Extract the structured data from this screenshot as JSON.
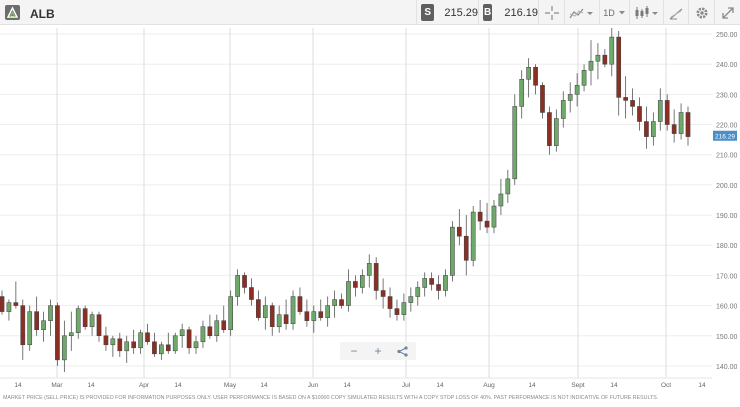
{
  "header": {
    "symbol": "ALB",
    "sell_tag": "S",
    "sell_price": "215.29",
    "buy_tag": "B",
    "buy_price": "216.19",
    "crosshair_icon": "crosshair-icon",
    "indicators_icon": "indicators-icon",
    "timeframe": "1D",
    "chart_type_icon": "candlestick-icon",
    "drawing_icon": "drawing-tools-icon",
    "settings_icon": "gear-icon",
    "expand_icon": "expand-icon"
  },
  "chart_data": {
    "type": "candlestick",
    "current_price_label": "216.29",
    "y_ticks": [
      "250.00",
      "240.00",
      "230.00",
      "220.00",
      "210.00",
      "200.00",
      "190.00",
      "180.00",
      "170.00",
      "160.00",
      "150.00",
      "140.00"
    ],
    "ylim": [
      136,
      252
    ],
    "x_ticks": [
      "14",
      "Mar",
      "14",
      "Apr",
      "14",
      "May",
      "14",
      "Jun",
      "14",
      "Jul",
      "14",
      "Aug",
      "14",
      "Sept",
      "14",
      "Oct",
      "14"
    ],
    "colors": {
      "up": "#6fa86b",
      "down": "#8b2e24",
      "grid": "#eeeeee",
      "price_label_bg": "#4a90c8"
    },
    "candles": [
      [
        163,
        165,
        157,
        158
      ],
      [
        158,
        162,
        155,
        161
      ],
      [
        161,
        168,
        159,
        160
      ],
      [
        160,
        162,
        142,
        147
      ],
      [
        147,
        160,
        145,
        158
      ],
      [
        158,
        163,
        150,
        152
      ],
      [
        152,
        158,
        148,
        155
      ],
      [
        155,
        162,
        150,
        160
      ],
      [
        160,
        161,
        140,
        142
      ],
      [
        142,
        155,
        138,
        150
      ],
      [
        150,
        158,
        145,
        151
      ],
      [
        151,
        160,
        149,
        159
      ],
      [
        159,
        160,
        152,
        153
      ],
      [
        153,
        158,
        150,
        157
      ],
      [
        157,
        158,
        148,
        150
      ],
      [
        150,
        153,
        145,
        147
      ],
      [
        147,
        150,
        143,
        149
      ],
      [
        149,
        151,
        143,
        145
      ],
      [
        145,
        150,
        141,
        148
      ],
      [
        148,
        152,
        144,
        146
      ],
      [
        146,
        152,
        144,
        151
      ],
      [
        151,
        154,
        147,
        148
      ],
      [
        148,
        151,
        143,
        144
      ],
      [
        144,
        148,
        142,
        147
      ],
      [
        147,
        151,
        144,
        145
      ],
      [
        145,
        151,
        144,
        150
      ],
      [
        150,
        154,
        146,
        152
      ],
      [
        152,
        153,
        144,
        146
      ],
      [
        146,
        150,
        144,
        148
      ],
      [
        148,
        155,
        146,
        153
      ],
      [
        153,
        157,
        149,
        150
      ],
      [
        150,
        157,
        148,
        155
      ],
      [
        155,
        160,
        151,
        152
      ],
      [
        152,
        165,
        150,
        163
      ],
      [
        163,
        172,
        160,
        170
      ],
      [
        170,
        171,
        164,
        166
      ],
      [
        166,
        169,
        160,
        162
      ],
      [
        162,
        165,
        155,
        156
      ],
      [
        156,
        163,
        152,
        160
      ],
      [
        160,
        161,
        150,
        153
      ],
      [
        153,
        160,
        151,
        157
      ],
      [
        157,
        162,
        152,
        154
      ],
      [
        154,
        165,
        152,
        163
      ],
      [
        163,
        166,
        157,
        158
      ],
      [
        158,
        162,
        153,
        155
      ],
      [
        155,
        160,
        151,
        158
      ],
      [
        158,
        162,
        155,
        156
      ],
      [
        156,
        163,
        153,
        160
      ],
      [
        160,
        165,
        156,
        162
      ],
      [
        162,
        164,
        159,
        160
      ],
      [
        160,
        172,
        158,
        168
      ],
      [
        168,
        170,
        163,
        166
      ],
      [
        166,
        172,
        164,
        170
      ],
      [
        170,
        177,
        166,
        174
      ],
      [
        174,
        176,
        162,
        165
      ],
      [
        165,
        169,
        159,
        163
      ],
      [
        163,
        166,
        156,
        159
      ],
      [
        159,
        162,
        155,
        157
      ],
      [
        157,
        164,
        155,
        161
      ],
      [
        161,
        166,
        158,
        163
      ],
      [
        163,
        168,
        160,
        166
      ],
      [
        166,
        171,
        163,
        169
      ],
      [
        169,
        171,
        165,
        167
      ],
      [
        167,
        170,
        162,
        165
      ],
      [
        165,
        172,
        163,
        170
      ],
      [
        170,
        188,
        168,
        186
      ],
      [
        186,
        192,
        180,
        183
      ],
      [
        183,
        190,
        170,
        175
      ],
      [
        175,
        193,
        173,
        191
      ],
      [
        191,
        195,
        185,
        188
      ],
      [
        188,
        194,
        184,
        186
      ],
      [
        186,
        195,
        184,
        193
      ],
      [
        193,
        202,
        190,
        197
      ],
      [
        197,
        205,
        194,
        202
      ],
      [
        202,
        230,
        200,
        226
      ],
      [
        226,
        238,
        222,
        235
      ],
      [
        235,
        242,
        229,
        239
      ],
      [
        239,
        240,
        230,
        233
      ],
      [
        233,
        234,
        222,
        224
      ],
      [
        224,
        226,
        210,
        213
      ],
      [
        213,
        225,
        211,
        222
      ],
      [
        222,
        231,
        219,
        228
      ],
      [
        228,
        234,
        224,
        230
      ],
      [
        230,
        237,
        226,
        233
      ],
      [
        233,
        240,
        231,
        238
      ],
      [
        238,
        248,
        233,
        241
      ],
      [
        241,
        247,
        235,
        243
      ],
      [
        243,
        245,
        239,
        240
      ],
      [
        240,
        252,
        236,
        249
      ],
      [
        249,
        251,
        223,
        229
      ],
      [
        229,
        236,
        222,
        228
      ],
      [
        228,
        232,
        223,
        226
      ],
      [
        226,
        229,
        218,
        221
      ],
      [
        221,
        226,
        212,
        216
      ],
      [
        216,
        224,
        213,
        221
      ],
      [
        221,
        232,
        218,
        228
      ],
      [
        228,
        230,
        218,
        220
      ],
      [
        220,
        225,
        214,
        217
      ],
      [
        217,
        227,
        215,
        224
      ],
      [
        224,
        226,
        213,
        216
      ]
    ]
  },
  "controls": {
    "zoom_out": "−",
    "zoom_in": "+",
    "share_icon": "share-icon"
  },
  "disclaimer": "MARKET PRICE (SELL PRICE) IS PROVIDED FOR INFORMATION PURPOSES ONLY. USER PERFORMANCE IS BASED ON A $10000 COPY SIMULATED RESULTS WITH A COPY STOP LOSS OF 40%. PAST PERFORMANCE IS NOT INDICATIVE OF FUTURE RESULTS."
}
